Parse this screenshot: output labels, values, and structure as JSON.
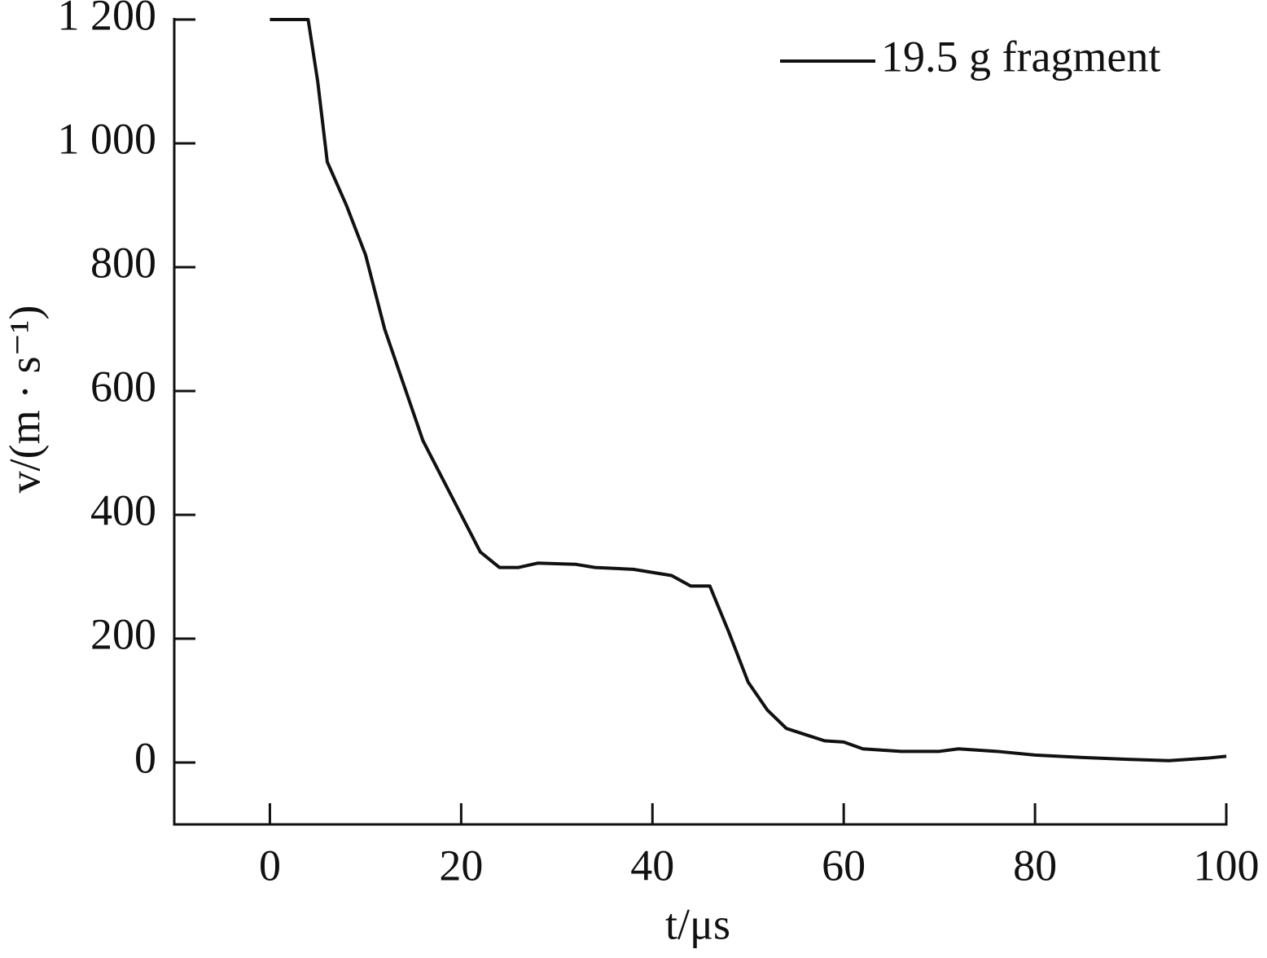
{
  "chart_data": {
    "type": "line",
    "x_label": "t/μs",
    "y_label": "v/(m · s⁻¹)",
    "xlim": [
      -10,
      100
    ],
    "ylim": [
      -100,
      1200
    ],
    "xticks": [
      0,
      20,
      40,
      60,
      80,
      100
    ],
    "yticks": [
      0,
      200,
      400,
      600,
      800,
      {
        "value": 1000,
        "label": "1 000"
      },
      {
        "value": 1200,
        "label": "1 200"
      }
    ],
    "legend": "top-right",
    "series": [
      {
        "name": "19.5 g fragment",
        "color": "#111111",
        "x": [
          0,
          4,
          5,
          6,
          8,
          10,
          12,
          14,
          16,
          18,
          20,
          22,
          24,
          26,
          28,
          32,
          34,
          38,
          42,
          44,
          46,
          48,
          50,
          52,
          54,
          56,
          58,
          60,
          62,
          66,
          70,
          72,
          76,
          80,
          85,
          90,
          94,
          98,
          100
        ],
        "values": [
          1200,
          1200,
          1100,
          970,
          900,
          820,
          700,
          610,
          520,
          460,
          400,
          340,
          315,
          315,
          322,
          320,
          315,
          312,
          302,
          285,
          285,
          210,
          130,
          85,
          55,
          45,
          35,
          33,
          22,
          18,
          18,
          22,
          18,
          12,
          8,
          5,
          3,
          7,
          10
        ]
      }
    ]
  }
}
